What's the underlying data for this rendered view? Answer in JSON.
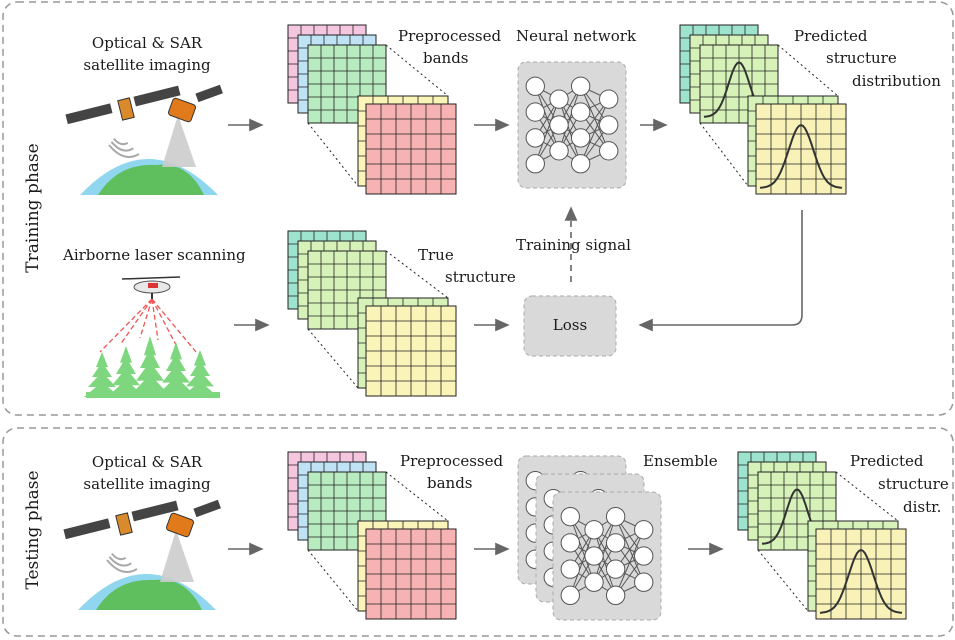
{
  "training": {
    "phase_label": "Training phase",
    "satellite_label": [
      "Optical & SAR",
      "satellite imaging"
    ],
    "bands_label": [
      "Preprocessed",
      "bands"
    ],
    "network_label": "Neural network",
    "predicted_label": [
      "Predicted",
      "structure",
      "distribution"
    ],
    "als_label": "Airborne laser scanning",
    "true_label": [
      "True",
      "structure"
    ],
    "signal_label": "Training signal",
    "loss_label": "Loss"
  },
  "testing": {
    "phase_label": "Testing phase",
    "satellite_label": [
      "Optical & SAR",
      "satellite imaging"
    ],
    "bands_label": [
      "Preprocessed",
      "bands"
    ],
    "ensemble_label": "Ensemble",
    "predicted_label": [
      "Predicted",
      "structure",
      "distr."
    ]
  },
  "colors": {
    "pink": "#f5c6e0",
    "blue": "#bfe3f5",
    "green": "#b8ecc0",
    "yellow": "#fbf4b8",
    "red": "#f7b3b3",
    "teal": "#9ee3cd",
    "lightgreen": "#d6f2b8",
    "cream": "#f8f2b8",
    "node_box": "#d9d9d9",
    "tree": "#7ed67e",
    "earth_green": "#5fbf5f",
    "earth_blue": "#8fd6ee"
  }
}
